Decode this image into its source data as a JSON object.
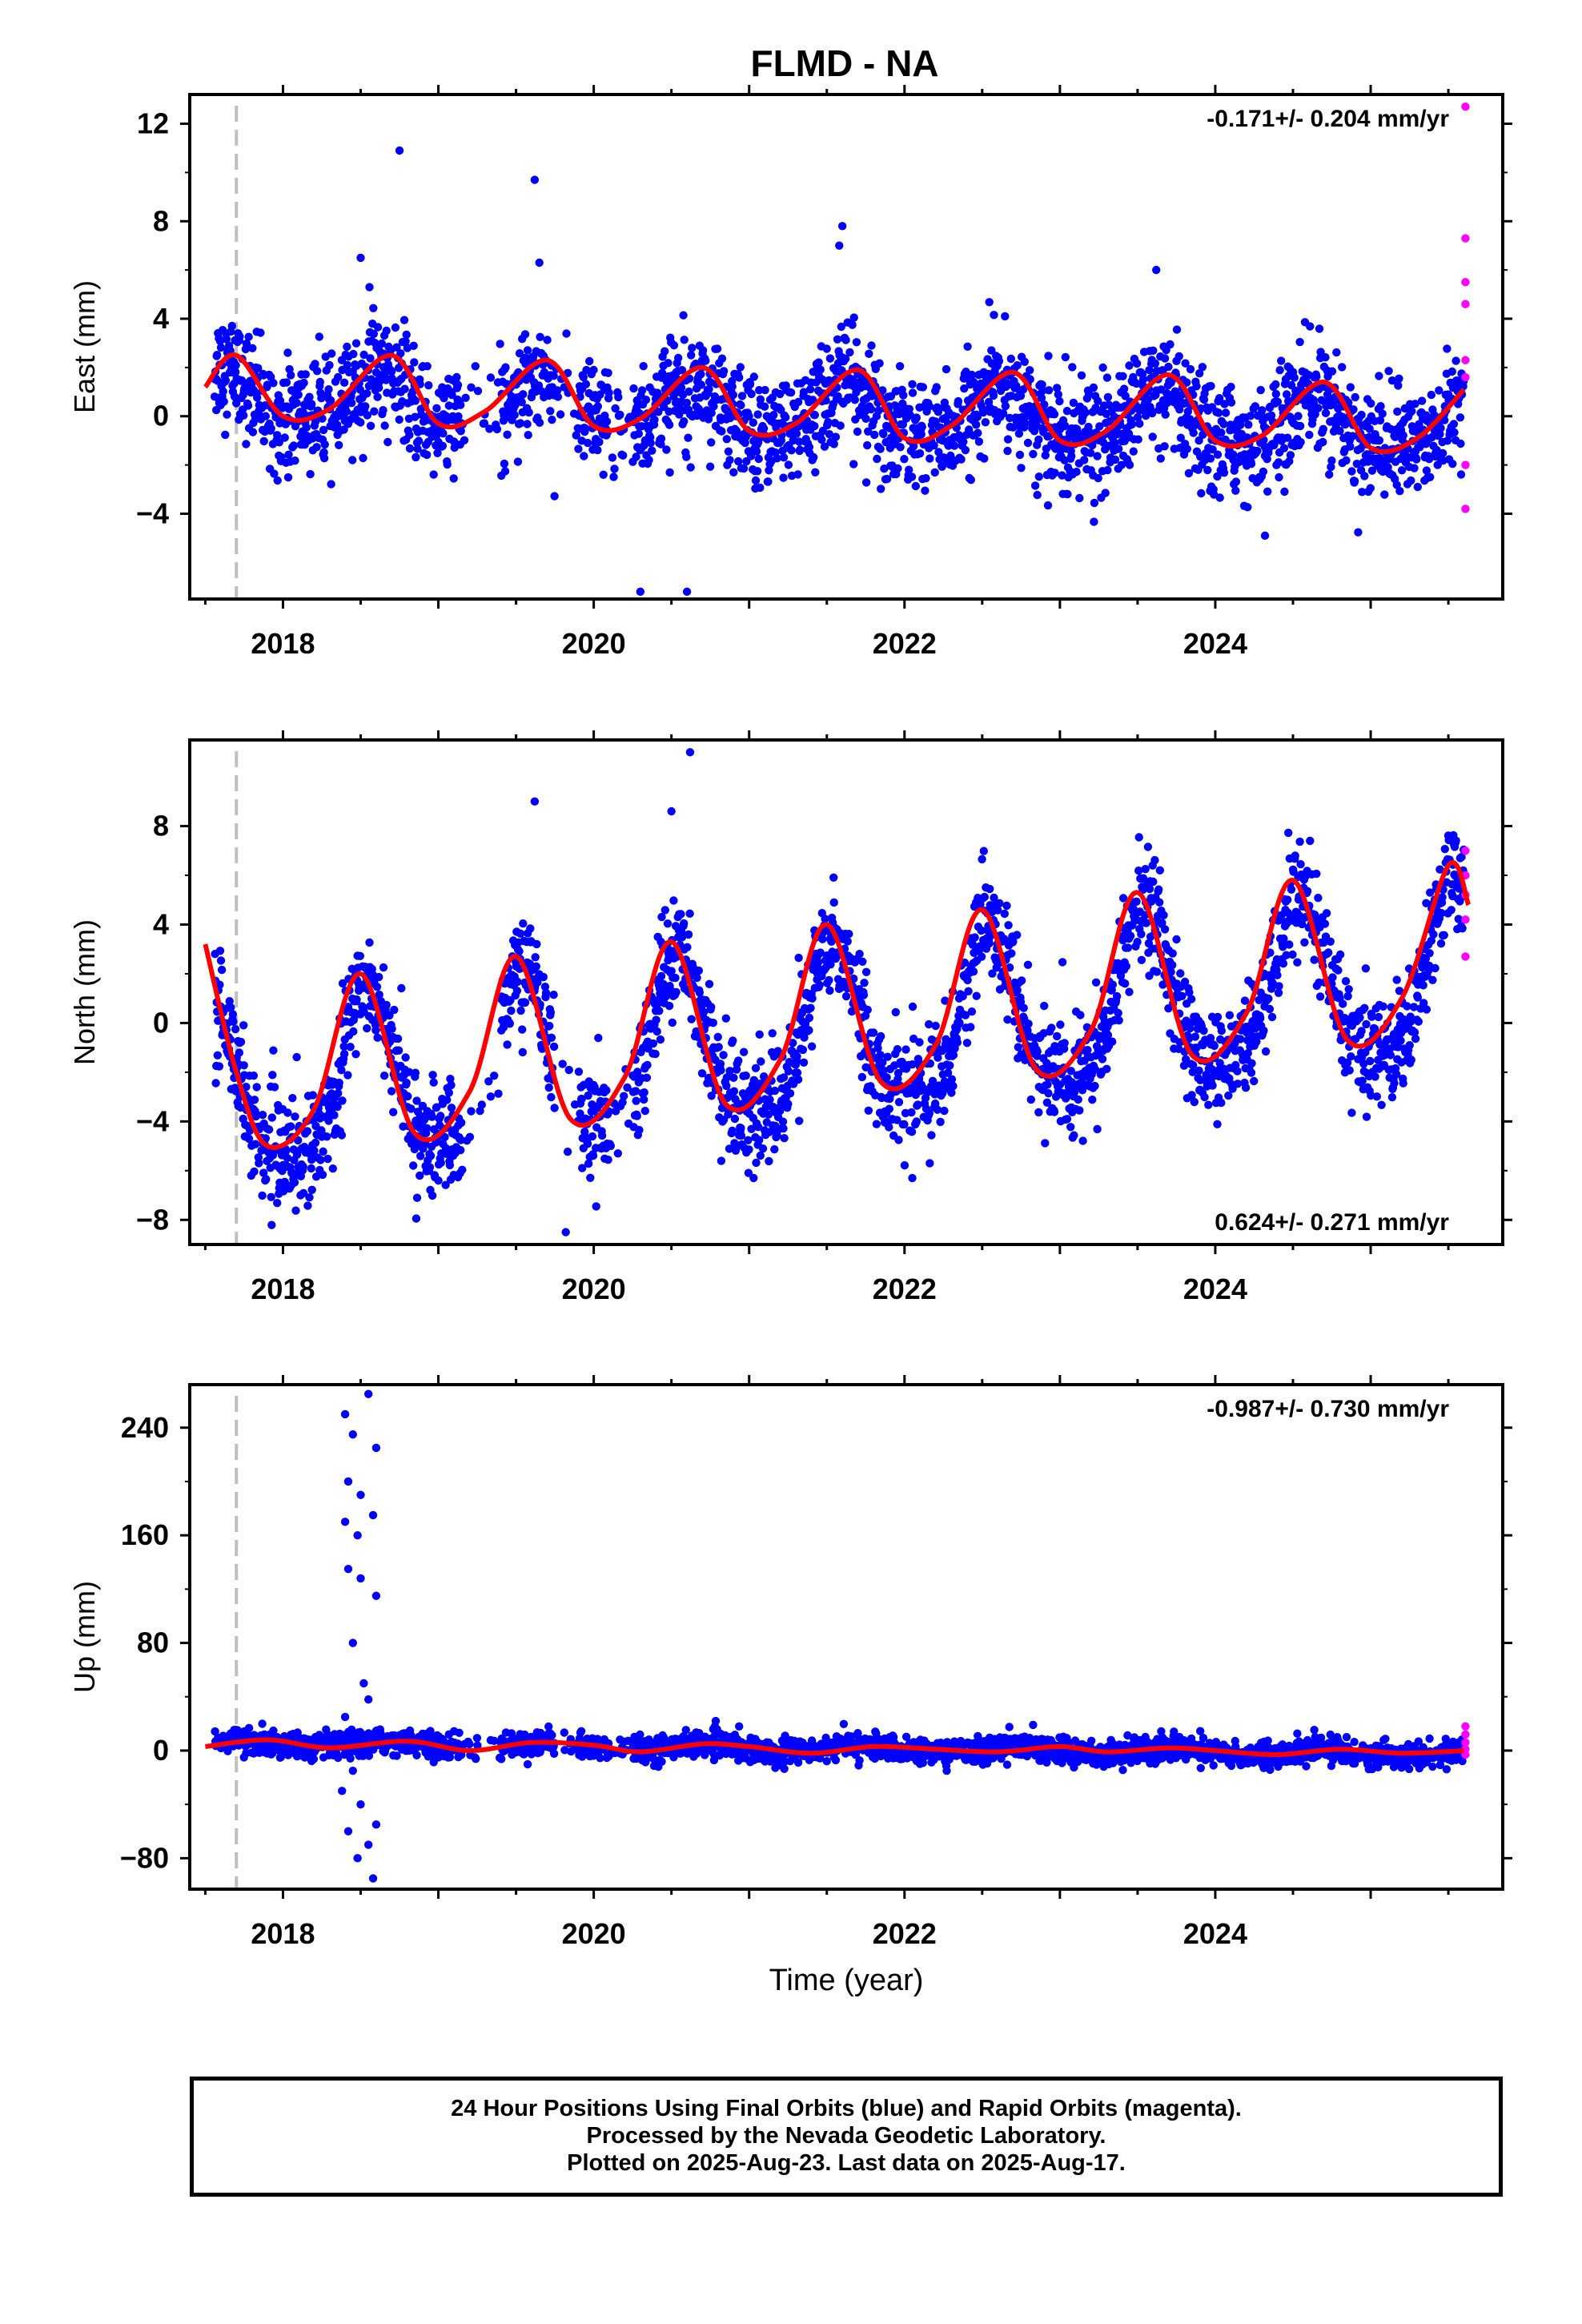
{
  "title": "FLMD - NA",
  "colors": {
    "final_orbits": "#0000ff",
    "rapid_orbits": "#ff00ff",
    "fit_line": "#ff0000",
    "marker_line": "#c0c0c0",
    "frame": "#000000"
  },
  "x_axis": {
    "label": "Time (year)",
    "ticks": [
      "2018",
      "2020",
      "2022",
      "2024"
    ],
    "range": [
      2017.4,
      2025.85
    ]
  },
  "footer": {
    "line1": "24 Hour Positions Using Final Orbits (blue) and Rapid Orbits (magenta).",
    "line2": "Processed by the Nevada Geodetic Laboratory.",
    "line3": "Plotted on 2025-Aug-23. Last data on 2025-Aug-17."
  },
  "chart_data": [
    {
      "type": "scatter",
      "component": "East",
      "ylabel": "East (mm)",
      "rate": "-0.171+/- 0.204 mm/yr",
      "rate_position": "top-right",
      "ylim": [
        -7.5,
        13.2
      ],
      "y_ticks": [
        "-4",
        "0",
        "4",
        "8",
        "12"
      ],
      "equipment_change_year": 2017.7,
      "trend": {
        "intercept_2021": 0.2,
        "slope": -0.171
      },
      "seasonal": {
        "annual_amp": 1.0,
        "annual_peak_month": "August",
        "semiannual_amp": 0.35
      },
      "scatter_sd": 1.1,
      "outliers": [
        [
          2018.75,
          10.9
        ],
        [
          2019.62,
          9.7
        ],
        [
          2019.65,
          6.3
        ],
        [
          2021.6,
          7.8
        ],
        [
          2021.58,
          7.0
        ],
        [
          2020.3,
          -7.2
        ],
        [
          2020.6,
          -7.2
        ],
        [
          2018.5,
          6.5
        ],
        [
          2023.62,
          6.0
        ],
        [
          2024.32,
          -4.9
        ]
      ],
      "rapid_orbit_points": [
        [
          2025.61,
          12.7
        ],
        [
          2025.61,
          7.3
        ],
        [
          2025.61,
          5.5
        ],
        [
          2025.61,
          4.6
        ],
        [
          2025.61,
          2.3
        ],
        [
          2025.61,
          1.6
        ],
        [
          2025.61,
          -2.0
        ],
        [
          2025.61,
          -3.8
        ]
      ],
      "fit_line": {
        "x": [
          2017.5,
          2017.7,
          2018.0,
          2018.3,
          2018.7,
          2019.0,
          2019.3,
          2019.7,
          2020.0,
          2020.3,
          2020.7,
          2021.0,
          2021.3,
          2021.7,
          2022.0,
          2022.3,
          2022.7,
          2023.0,
          2023.3,
          2023.7,
          2024.0,
          2024.3,
          2024.7,
          2025.0,
          2025.3,
          2025.6
        ],
        "y": [
          1.2,
          2.5,
          0.0,
          0.3,
          2.5,
          -0.3,
          0.2,
          2.3,
          -0.4,
          -0.1,
          2.0,
          -0.6,
          -0.3,
          1.9,
          -0.9,
          -0.4,
          1.8,
          -1.0,
          -0.6,
          1.7,
          -1.0,
          -0.8,
          1.4,
          -1.3,
          -0.9,
          1.1
        ]
      }
    },
    {
      "type": "scatter",
      "component": "North",
      "ylabel": "North (mm)",
      "rate": "0.624+/- 0.271 mm/yr",
      "rate_position": "bottom-right",
      "ylim": [
        -9.0,
        11.5
      ],
      "y_ticks": [
        "-8",
        "-4",
        "0",
        "4",
        "8"
      ],
      "equipment_change_year": 2017.7,
      "trend": {
        "intercept_2021": -1.0,
        "slope": 0.624
      },
      "seasonal": {
        "annual_amp": 3.3,
        "annual_peak_month": "July",
        "semiannual_amp": 0.8
      },
      "scatter_sd": 1.1,
      "outliers": [
        [
          2020.62,
          11.0
        ],
        [
          2019.62,
          9.0
        ],
        [
          2019.82,
          -8.5
        ],
        [
          2018.88,
          -6.2
        ],
        [
          2022.05,
          -6.3
        ],
        [
          2020.5,
          8.6
        ]
      ],
      "rapid_orbit_points": [
        [
          2025.61,
          7.0
        ],
        [
          2025.61,
          6.0
        ],
        [
          2025.61,
          5.2
        ],
        [
          2025.61,
          4.2
        ],
        [
          2025.61,
          2.7
        ]
      ],
      "fit_line": {
        "x": [
          2017.5,
          2017.7,
          2017.9,
          2018.2,
          2018.5,
          2018.85,
          2019.2,
          2019.5,
          2019.85,
          2020.2,
          2020.5,
          2020.85,
          2021.2,
          2021.5,
          2021.85,
          2022.2,
          2022.5,
          2022.85,
          2023.2,
          2023.5,
          2023.85,
          2024.2,
          2024.5,
          2024.85,
          2025.2,
          2025.5,
          2025.63
        ],
        "y": [
          3.2,
          -2.0,
          -5.0,
          -3.5,
          2.0,
          -4.5,
          -2.8,
          2.7,
          -3.9,
          -2.2,
          3.3,
          -3.3,
          -1.5,
          4.0,
          -2.4,
          -0.9,
          4.6,
          -1.9,
          -0.3,
          5.3,
          -1.3,
          0.4,
          5.8,
          -0.7,
          1.0,
          6.4,
          4.8
        ]
      }
    },
    {
      "type": "scatter",
      "component": "Up",
      "ylabel": "Up (mm)",
      "rate": "-0.987+/- 0.730 mm/yr",
      "rate_position": "top-right",
      "ylim": [
        -103,
        272
      ],
      "y_ticks": [
        "-80",
        "0",
        "80",
        "160",
        "240"
      ],
      "equipment_change_year": 2017.7,
      "trend": {
        "intercept_2021": 2.0,
        "slope": -0.987
      },
      "seasonal": {
        "annual_amp": 2.5,
        "annual_peak_month": "September",
        "semiannual_amp": 0.5
      },
      "scatter_sd": 4.5,
      "outliers": [
        [
          2018.4,
          250
        ],
        [
          2018.45,
          235
        ],
        [
          2018.55,
          265
        ],
        [
          2018.42,
          200
        ],
        [
          2018.5,
          190
        ],
        [
          2018.6,
          225
        ],
        [
          2018.4,
          170
        ],
        [
          2018.48,
          160
        ],
        [
          2018.58,
          175
        ],
        [
          2018.42,
          135
        ],
        [
          2018.5,
          128
        ],
        [
          2018.6,
          115
        ],
        [
          2018.45,
          80
        ],
        [
          2018.52,
          50
        ],
        [
          2018.55,
          38
        ],
        [
          2018.4,
          25
        ],
        [
          2018.45,
          -15
        ],
        [
          2018.5,
          -40
        ],
        [
          2018.42,
          -60
        ],
        [
          2018.55,
          -70
        ],
        [
          2018.48,
          -80
        ],
        [
          2018.58,
          -95
        ],
        [
          2018.6,
          -55
        ],
        [
          2018.38,
          -30
        ]
      ],
      "rapid_orbit_points": [
        [
          2025.61,
          18
        ],
        [
          2025.61,
          12
        ],
        [
          2025.61,
          6
        ],
        [
          2025.61,
          1
        ],
        [
          2025.61,
          -3
        ]
      ],
      "fit_line": {
        "x": [
          2017.5,
          2017.9,
          2018.3,
          2018.8,
          2019.2,
          2019.6,
          2020.0,
          2020.3,
          2020.7,
          2021.0,
          2021.4,
          2021.8,
          2022.2,
          2022.6,
          2023.0,
          2023.3,
          2023.7,
          2024.0,
          2024.4,
          2024.8,
          2025.2,
          2025.6
        ],
        "y": [
          3,
          8,
          2,
          7,
          0,
          6,
          4,
          -1,
          5,
          3,
          -2,
          3,
          1,
          -1,
          3,
          -1,
          2,
          0,
          -3,
          1,
          -2,
          0
        ]
      }
    }
  ]
}
